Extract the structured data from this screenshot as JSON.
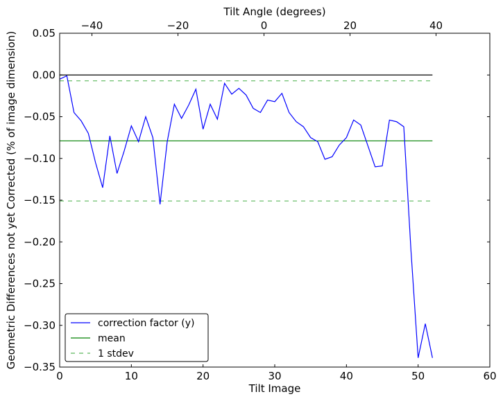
{
  "chart_data": {
    "type": "line",
    "xlabel": "Tilt Image",
    "ylabel": "Geometric Differences not yet Corrected (% of image dimension)",
    "x2label": "Tilt Angle (degrees)",
    "xlim": [
      0,
      60
    ],
    "ylim": [
      -0.35,
      0.05
    ],
    "x2lim": [
      -47.5,
      52.5
    ],
    "xticks": [
      0,
      10,
      20,
      30,
      40,
      50,
      60
    ],
    "yticks": [
      0.05,
      0.0,
      -0.05,
      -0.1,
      -0.15,
      -0.2,
      -0.25,
      -0.3,
      -0.35
    ],
    "x2ticks": [
      -40,
      -20,
      0,
      20,
      40
    ],
    "xtick_labels": [
      "0",
      "10",
      "20",
      "30",
      "40",
      "50",
      "60"
    ],
    "ytick_labels": [
      "0.05",
      "0.00",
      "−0.05",
      "−0.10",
      "−0.15",
      "−0.20",
      "−0.25",
      "−0.30",
      "−0.35"
    ],
    "x2tick_labels": [
      "−40",
      "−20",
      "0",
      "20",
      "40"
    ],
    "grid": false,
    "legend_position": "bottom-left",
    "series": [
      {
        "name": "correction factor (y)",
        "color": "#0000ff",
        "style": "solid",
        "x": [
          0,
          1,
          2,
          3,
          4,
          5,
          6,
          7,
          8,
          9,
          10,
          11,
          12,
          13,
          14,
          15,
          16,
          17,
          18,
          19,
          20,
          21,
          22,
          23,
          24,
          25,
          26,
          27,
          28,
          29,
          30,
          31,
          32,
          33,
          34,
          35,
          36,
          37,
          38,
          39,
          40,
          41,
          42,
          43,
          44,
          45,
          46,
          47,
          48,
          49,
          50,
          51,
          52
        ],
        "y": [
          -0.005,
          -0.001,
          -0.045,
          -0.055,
          -0.07,
          -0.105,
          -0.135,
          -0.073,
          -0.118,
          -0.091,
          -0.061,
          -0.08,
          -0.05,
          -0.075,
          -0.155,
          -0.08,
          -0.035,
          -0.052,
          -0.036,
          -0.017,
          -0.065,
          -0.035,
          -0.053,
          -0.01,
          -0.023,
          -0.016,
          -0.024,
          -0.04,
          -0.045,
          -0.03,
          -0.032,
          -0.022,
          -0.045,
          -0.056,
          -0.062,
          -0.075,
          -0.08,
          -0.101,
          -0.098,
          -0.084,
          -0.075,
          -0.054,
          -0.06,
          -0.085,
          -0.11,
          -0.109,
          -0.054,
          -0.056,
          -0.062,
          -0.21,
          -0.339,
          -0.298,
          -0.339
        ]
      },
      {
        "name": "mean",
        "color": "#008000",
        "style": "solid",
        "x": [
          0,
          52
        ],
        "y": [
          -0.079,
          -0.079
        ]
      },
      {
        "name": "1 stdev",
        "color": "#5cb85c",
        "style": "dashed",
        "x": [
          0,
          52
        ],
        "y": [
          -0.007,
          -0.007
        ]
      },
      {
        "name": "",
        "color": "#5cb85c",
        "style": "dashed",
        "x": [
          0,
          52
        ],
        "y": [
          -0.151,
          -0.151
        ]
      },
      {
        "name": "",
        "color": "#000000",
        "style": "solid",
        "x": [
          0,
          52
        ],
        "y": [
          0.0,
          0.0
        ]
      }
    ]
  }
}
